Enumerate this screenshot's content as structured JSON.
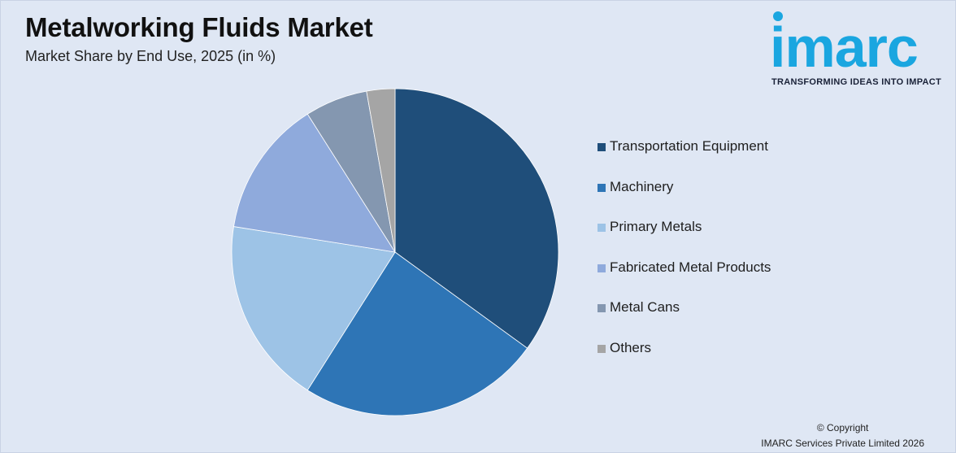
{
  "title": "Metalworking Fluids Market",
  "subtitle": "Market Share by End Use, 2025 (in %)",
  "logo": {
    "word": "imarc",
    "tagline": "TRANSFORMING IDEAS INTO IMPACT",
    "color": "#1aa6e0"
  },
  "chart_data": {
    "type": "pie",
    "title": "Metalworking Fluids Market",
    "subtitle": "Market Share by End Use, 2025 (in %)",
    "legend_position": "right",
    "slices": [
      {
        "label": "Transportation Equipment",
        "value": 35,
        "color": "#1f4e7a"
      },
      {
        "label": "Machinery",
        "value": 24,
        "color": "#2e75b6"
      },
      {
        "label": "Primary Metals",
        "value": 18.5,
        "color": "#9dc3e6"
      },
      {
        "label": "Fabricated Metal Products",
        "value": 13.5,
        "color": "#8faadc"
      },
      {
        "label": "Metal Cans",
        "value": 6.2,
        "color": "#8497b0"
      },
      {
        "label": "Others",
        "value": 2.8,
        "color": "#a5a5a5"
      }
    ]
  },
  "copyright": {
    "line1": "© Copyright",
    "line2": "IMARC Services Private Limited 2026"
  }
}
